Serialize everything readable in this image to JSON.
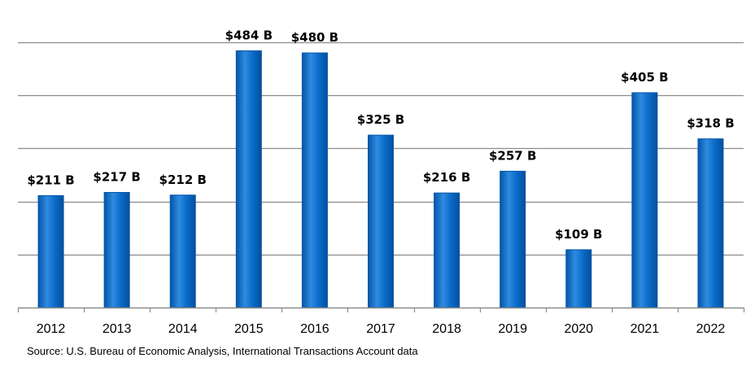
{
  "chart_data": {
    "type": "bar",
    "title": "",
    "xlabel": "",
    "ylabel": "",
    "categories": [
      "2012",
      "2013",
      "2014",
      "2015",
      "2016",
      "2017",
      "2018",
      "2019",
      "2020",
      "2021",
      "2022"
    ],
    "values": [
      211,
      217,
      212,
      484,
      480,
      325,
      216,
      257,
      109,
      405,
      318
    ],
    "value_labels": [
      "$211 B",
      "$217 B",
      "$212 B",
      "$484 B",
      "$480 B",
      "$325 B",
      "$216 B",
      "$257 B",
      "$109 B",
      "$405 B",
      "$318 B"
    ],
    "ylim": [
      0,
      500
    ],
    "grid": true,
    "colors": {
      "bar": "#0A6CCB",
      "bar_light": "#3A93E6",
      "bar_dark": "#0456A8",
      "grid": "#8C8C8C"
    }
  },
  "source_text": "Source:  U.S. Bureau of Economic Analysis, International Transactions Account data"
}
